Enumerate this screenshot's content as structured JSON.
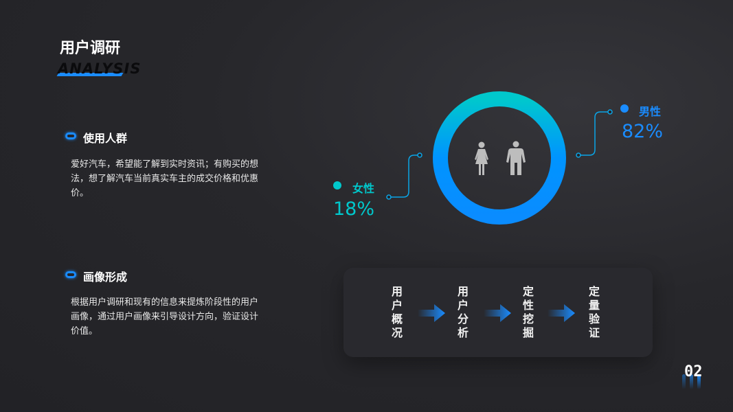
{
  "header": {
    "title": "用户调研",
    "title_en": "ANALYSIS"
  },
  "sections": [
    {
      "title": "使用人群",
      "body": "爱好汽车，希望能了解到实时资讯；有购买的想法，想了解汽车当前真实车主的成交价格和优惠价。"
    },
    {
      "title": "画像形成",
      "body": "根据用户调研和现有的信息来提炼阶段性的用户画像，通过用户画像来引导设计方向，验证设计价值。"
    }
  ],
  "gender": {
    "female": {
      "label": "女性",
      "value": "18%",
      "color": "#00c8cc"
    },
    "male": {
      "label": "男性",
      "value": "82%",
      "color": "#1a8cff"
    },
    "icons": [
      "female-figure-icon",
      "male-figure-icon"
    ]
  },
  "process": {
    "steps": [
      "用户概况",
      "用户分析",
      "定性挖掘",
      "定量验证"
    ]
  },
  "page_number": "02",
  "colors": {
    "accent": "#1a8cff",
    "teal": "#00c8cc",
    "background": "#242428"
  }
}
